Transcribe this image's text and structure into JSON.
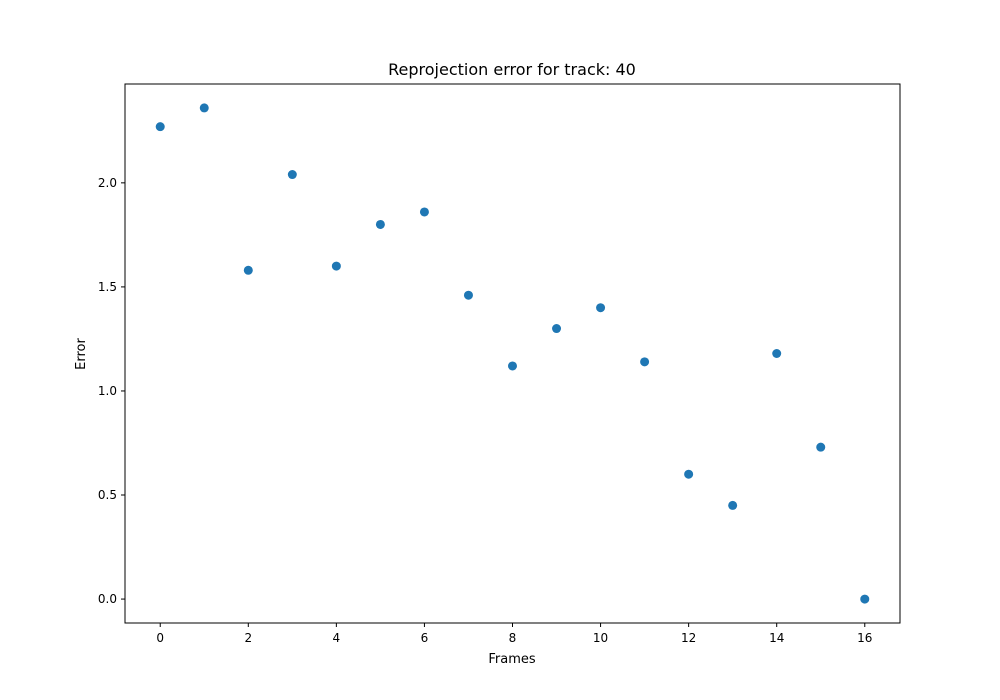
{
  "chart_data": {
    "type": "scatter",
    "title": "Reprojection error for track: 40",
    "xlabel": "Frames",
    "ylabel": "Error",
    "xlim": [
      -0.8,
      16.8
    ],
    "ylim": [
      -0.115,
      2.475
    ],
    "xticks": [
      0,
      2,
      4,
      6,
      8,
      10,
      12,
      14,
      16
    ],
    "xtick_labels": [
      "0",
      "2",
      "4",
      "6",
      "8",
      "10",
      "12",
      "14",
      "16"
    ],
    "yticks": [
      0.0,
      0.5,
      1.0,
      1.5,
      2.0
    ],
    "ytick_labels": [
      "0.0",
      "0.5",
      "1.0",
      "1.5",
      "2.0"
    ],
    "grid": false,
    "color": "#1f77b4",
    "series": [
      {
        "x": [
          0,
          1,
          2,
          3,
          4,
          5,
          6,
          7,
          8,
          9,
          10,
          11,
          12,
          13,
          14,
          15,
          16
        ],
        "y": [
          2.27,
          2.36,
          1.58,
          2.04,
          1.6,
          1.8,
          1.86,
          1.46,
          1.12,
          1.3,
          1.4,
          1.14,
          0.6,
          0.45,
          1.18,
          0.73,
          0.0
        ]
      }
    ]
  }
}
